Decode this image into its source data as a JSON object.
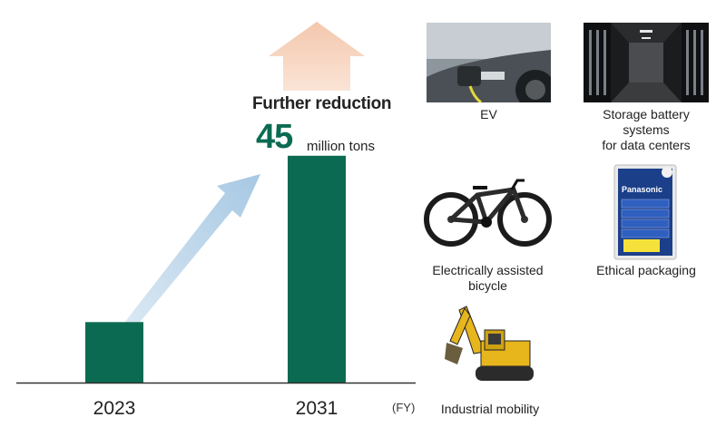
{
  "chart_data": {
    "type": "bar",
    "categories": [
      "2023",
      "2031"
    ],
    "values": [
      12,
      45
    ],
    "unit": "million tons",
    "xlabel": "(FY)",
    "ylim": [
      0,
      50
    ],
    "bar_color": "#0b6b52",
    "annotation": {
      "title": "Further reduction",
      "value": "45",
      "unit": "million tons"
    }
  },
  "applications": [
    {
      "caption": "EV",
      "icon": "ev-charging-photo"
    },
    {
      "caption": "Storage battery\nsystems\nfor data centers",
      "icon": "data-center-photo"
    },
    {
      "caption": "Electrically assisted\nbicycle",
      "icon": "e-bike-photo"
    },
    {
      "caption": "Ethical packaging",
      "icon": "battery-package-photo"
    },
    {
      "caption": "Industrial mobility",
      "icon": "excavator-photo"
    }
  ]
}
